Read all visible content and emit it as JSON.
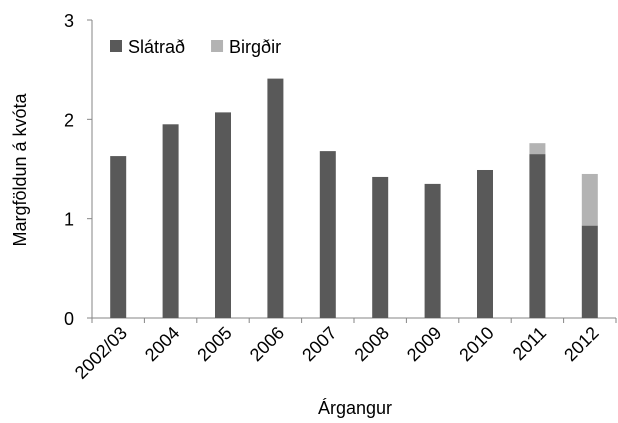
{
  "chart_data": {
    "type": "stacked_bar",
    "categories": [
      "2002/03",
      "2004",
      "2005",
      "2006",
      "2007",
      "2008",
      "2009",
      "2010",
      "2011",
      "2012"
    ],
    "series": [
      {
        "name": "Slátrað",
        "color": "#595959",
        "values": [
          1.63,
          1.95,
          2.07,
          2.41,
          1.68,
          1.42,
          1.35,
          1.49,
          1.65,
          0.93
        ]
      },
      {
        "name": "Birgðir",
        "color": "#b3b3b3",
        "values": [
          0,
          0,
          0,
          0,
          0,
          0,
          0,
          0,
          0.11,
          0.52
        ]
      }
    ],
    "x_label": "Árgangur",
    "y_label": "Margföldun á kvóta",
    "ylim": [
      0,
      3
    ],
    "yticks": [
      0,
      1,
      2,
      3
    ],
    "legend": "top-left"
  }
}
